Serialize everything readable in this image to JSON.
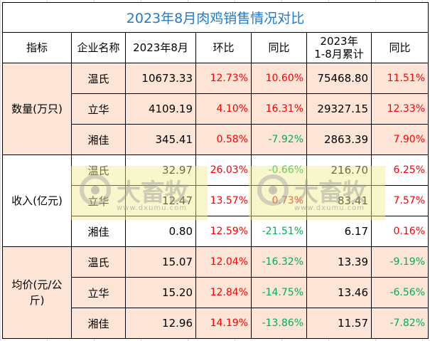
{
  "title": "2023年8月肉鸡销售情况对比",
  "headers": [
    "指标",
    "企业名称",
    "2023年8月",
    "环比",
    "同比",
    "2023年\n1-8月累计",
    "同比"
  ],
  "header_cumulative": [
    "2023年",
    "1-8月累计"
  ],
  "colors": {
    "title": "#1f7bc8",
    "positive": "#ff0000",
    "negative": "#00b050",
    "band": "#fce4d6"
  },
  "groups": [
    {
      "indicator": "数量(万只)",
      "rows": [
        {
          "company": "温氏",
          "aug": "10673.33",
          "mom": "12.73%",
          "yoy": "10.60%",
          "cum": "75468.80",
          "cum_yoy": "11.51%"
        },
        {
          "company": "立华",
          "aug": "4109.19",
          "mom": "4.10%",
          "yoy": "16.31%",
          "cum": "29327.15",
          "cum_yoy": "12.33%"
        },
        {
          "company": "湘佳",
          "aug": "345.41",
          "mom": "0.58%",
          "yoy": "-7.92%",
          "cum": "2863.39",
          "cum_yoy": "7.90%"
        }
      ]
    },
    {
      "indicator": "收入(亿元)",
      "rows": [
        {
          "company": "温氏",
          "aug": "32.97",
          "mom": "26.03%",
          "yoy": "-0.66%",
          "cum": "216.70",
          "cum_yoy": "6.25%"
        },
        {
          "company": "立华",
          "aug": "12.47",
          "mom": "13.57%",
          "yoy": "0.73%",
          "cum": "83.41",
          "cum_yoy": "7.57%"
        },
        {
          "company": "湘佳",
          "aug": "0.80",
          "mom": "12.59%",
          "yoy": "-21.51%",
          "cum": "6.17",
          "cum_yoy": "0.16%"
        }
      ]
    },
    {
      "indicator": "均价(元/公斤)",
      "rows": [
        {
          "company": "温氏",
          "aug": "15.07",
          "mom": "12.04%",
          "yoy": "-16.32%",
          "cum": "13.39",
          "cum_yoy": "-9.19%"
        },
        {
          "company": "立华",
          "aug": "15.20",
          "mom": "12.84%",
          "yoy": "-14.75%",
          "cum": "13.46",
          "cum_yoy": "-6.56%"
        },
        {
          "company": "湘佳",
          "aug": "12.96",
          "mom": "14.19%",
          "yoy": "-13.86%",
          "cum": "11.57",
          "cum_yoy": "-7.82%"
        }
      ]
    }
  ],
  "watermark": {
    "brand": "大畜牧",
    "url": "www.dxumu.com"
  }
}
